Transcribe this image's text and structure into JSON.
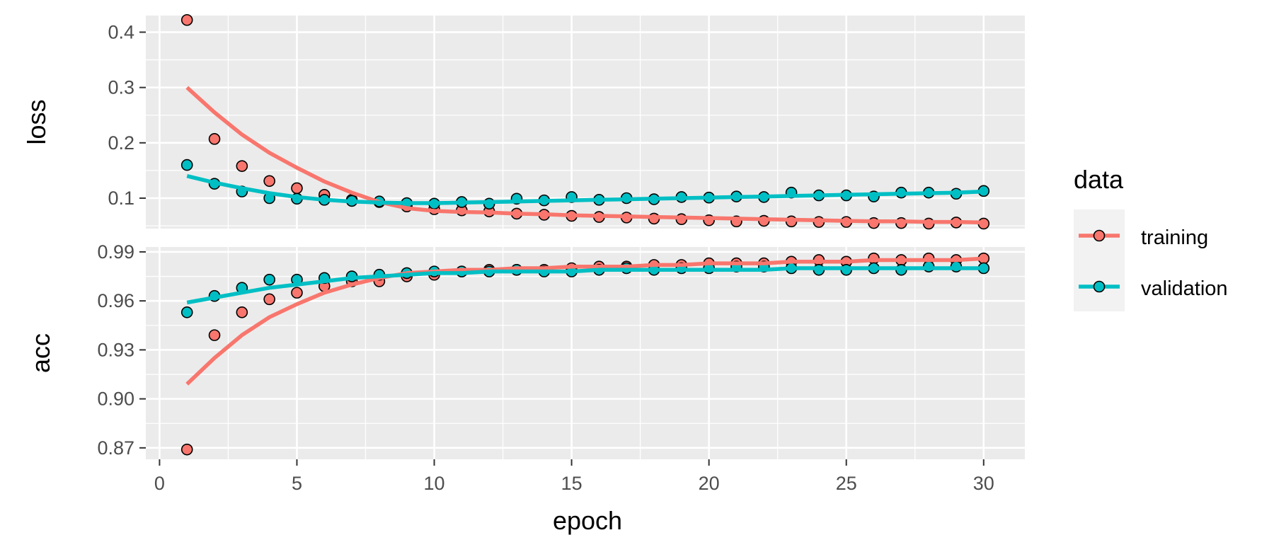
{
  "chart_data": {
    "type": "scatter",
    "xlabel": "epoch",
    "x_ticks": [
      0,
      5,
      10,
      15,
      20,
      25,
      30
    ],
    "xlim": [
      -0.5,
      31.5
    ],
    "legend": {
      "title": "data",
      "position": "right",
      "entries": [
        "training",
        "validation"
      ]
    },
    "colors": {
      "training": "#F8766D",
      "validation": "#00BFC4",
      "panel_bg": "#EBEBEB",
      "grid": "#FFFFFF"
    },
    "epochs": [
      1,
      2,
      3,
      4,
      5,
      6,
      7,
      8,
      9,
      10,
      11,
      12,
      13,
      14,
      15,
      16,
      17,
      18,
      19,
      20,
      21,
      22,
      23,
      24,
      25,
      26,
      27,
      28,
      29,
      30
    ],
    "panels": [
      {
        "ylabel": "loss",
        "ylim": [
          0.045,
          0.43
        ],
        "y_ticks": [
          0.1,
          0.2,
          0.3,
          0.4
        ],
        "y_tick_labels": [
          "0.1",
          "0.2",
          "0.3",
          "0.4"
        ],
        "series": [
          {
            "name": "training",
            "values": [
              0.422,
              0.207,
              0.158,
              0.131,
              0.118,
              0.106,
              0.097,
              0.093,
              0.085,
              0.08,
              0.078,
              0.076,
              0.072,
              0.07,
              0.068,
              0.066,
              0.065,
              0.063,
              0.062,
              0.06,
              0.058,
              0.059,
              0.058,
              0.057,
              0.057,
              0.055,
              0.055,
              0.054,
              0.056,
              0.054
            ],
            "smooth": [
              0.3,
              0.255,
              0.215,
              0.182,
              0.155,
              0.13,
              0.11,
              0.093,
              0.082,
              0.077,
              0.075,
              0.074,
              0.072,
              0.071,
              0.069,
              0.068,
              0.067,
              0.066,
              0.065,
              0.064,
              0.063,
              0.062,
              0.061,
              0.06,
              0.059,
              0.058,
              0.058,
              0.057,
              0.057,
              0.056
            ]
          },
          {
            "name": "validation",
            "values": [
              0.16,
              0.126,
              0.112,
              0.1,
              0.099,
              0.097,
              0.095,
              0.094,
              0.091,
              0.09,
              0.093,
              0.09,
              0.099,
              0.096,
              0.102,
              0.097,
              0.1,
              0.098,
              0.102,
              0.101,
              0.103,
              0.102,
              0.11,
              0.105,
              0.105,
              0.103,
              0.11,
              0.11,
              0.108,
              0.113
            ],
            "smooth": [
              0.14,
              0.128,
              0.118,
              0.109,
              0.102,
              0.097,
              0.094,
              0.092,
              0.091,
              0.091,
              0.092,
              0.093,
              0.094,
              0.095,
              0.096,
              0.097,
              0.098,
              0.099,
              0.1,
              0.101,
              0.102,
              0.103,
              0.104,
              0.105,
              0.106,
              0.107,
              0.108,
              0.109,
              0.11,
              0.112
            ]
          }
        ]
      },
      {
        "ylabel": "acc",
        "ylim": [
          0.863,
          0.993
        ],
        "y_ticks": [
          0.87,
          0.9,
          0.93,
          0.96,
          0.99
        ],
        "y_tick_labels": [
          "0.87",
          "0.90",
          "0.93",
          "0.96",
          "0.99"
        ],
        "series": [
          {
            "name": "training",
            "values": [
              0.869,
              0.939,
              0.953,
              0.961,
              0.965,
              0.969,
              0.972,
              0.972,
              0.975,
              0.976,
              0.978,
              0.979,
              0.979,
              0.979,
              0.98,
              0.981,
              0.981,
              0.982,
              0.982,
              0.983,
              0.983,
              0.983,
              0.984,
              0.985,
              0.984,
              0.986,
              0.985,
              0.986,
              0.985,
              0.986
            ],
            "smooth": [
              0.909,
              0.925,
              0.939,
              0.95,
              0.958,
              0.965,
              0.97,
              0.974,
              0.977,
              0.978,
              0.979,
              0.979,
              0.98,
              0.98,
              0.981,
              0.981,
              0.981,
              0.982,
              0.982,
              0.983,
              0.983,
              0.983,
              0.984,
              0.984,
              0.984,
              0.985,
              0.985,
              0.985,
              0.985,
              0.986
            ]
          },
          {
            "name": "validation",
            "values": [
              0.953,
              0.963,
              0.968,
              0.973,
              0.973,
              0.974,
              0.975,
              0.976,
              0.977,
              0.978,
              0.978,
              0.978,
              0.979,
              0.978,
              0.978,
              0.979,
              0.98,
              0.979,
              0.98,
              0.98,
              0.981,
              0.981,
              0.98,
              0.979,
              0.979,
              0.98,
              0.979,
              0.981,
              0.981,
              0.98
            ],
            "smooth": [
              0.959,
              0.962,
              0.965,
              0.968,
              0.97,
              0.972,
              0.974,
              0.975,
              0.976,
              0.977,
              0.977,
              0.978,
              0.978,
              0.978,
              0.978,
              0.979,
              0.979,
              0.979,
              0.979,
              0.979,
              0.979,
              0.979,
              0.98,
              0.98,
              0.98,
              0.98,
              0.98,
              0.98,
              0.98,
              0.98
            ]
          }
        ]
      }
    ]
  }
}
